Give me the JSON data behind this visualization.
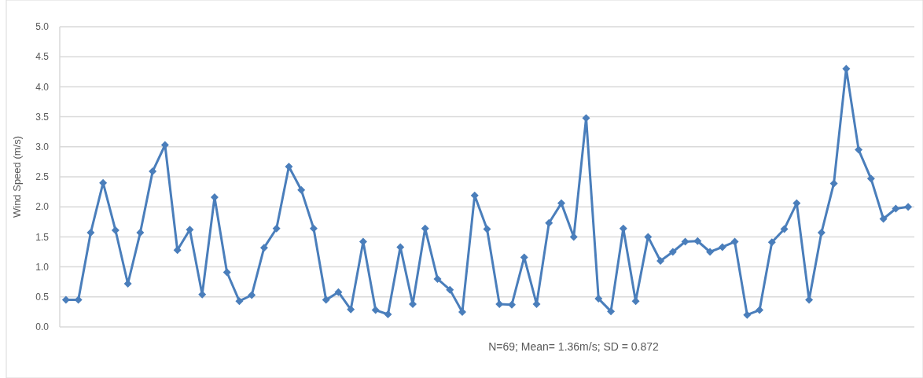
{
  "chart_data": {
    "type": "line",
    "ylabel": "Wind Speed (m/s)",
    "categories": [
      null,
      null,
      null,
      null,
      null,
      null,
      null,
      null,
      null,
      null,
      null,
      null,
      null,
      null,
      null,
      null,
      null,
      null,
      null,
      null,
      null,
      null,
      null,
      null,
      null,
      null,
      null,
      null,
      null,
      null,
      null,
      null,
      null,
      null,
      null,
      null,
      null,
      null,
      null,
      null,
      null,
      null,
      null,
      null,
      null,
      null,
      null,
      null,
      null,
      null,
      null,
      null,
      null,
      null,
      null,
      null,
      null,
      null,
      null,
      null,
      null,
      null,
      null,
      null,
      null,
      null,
      null,
      null,
      null
    ],
    "series": [
      {
        "color": "#4a7ebb",
        "values": [
          0.45,
          0.45,
          1.57,
          2.4,
          1.61,
          0.72,
          1.57,
          2.59,
          3.03,
          1.28,
          1.62,
          0.54,
          2.16,
          0.91,
          0.43,
          0.53,
          1.32,
          1.64,
          2.67,
          2.28,
          1.64,
          0.45,
          0.58,
          0.29,
          1.42,
          0.28,
          0.21,
          1.33,
          0.38,
          1.64,
          0.8,
          0.62,
          0.25,
          2.19,
          1.63,
          0.38,
          0.37,
          1.16,
          0.38,
          1.73,
          2.06,
          1.5,
          3.48,
          0.47,
          0.26,
          1.64,
          0.43,
          1.5,
          1.1,
          1.25,
          1.42,
          1.43,
          1.25,
          1.33,
          1.42,
          0.2,
          0.28,
          1.41,
          1.63,
          2.06,
          0.45,
          1.57,
          2.39,
          4.3,
          2.95,
          2.47,
          1.8,
          1.97,
          2.0
        ]
      }
    ],
    "ylim": [
      0,
      5
    ],
    "yticks": [
      {
        "value": 0,
        "label": "0.0"
      },
      {
        "value": 0.5,
        "label": "0.5"
      },
      {
        "value": 1,
        "label": "1.0"
      },
      {
        "value": 1.5,
        "label": "1.5"
      },
      {
        "value": 2,
        "label": "2.0"
      },
      {
        "value": 2.5,
        "label": "2.5"
      },
      {
        "value": 3,
        "label": "3.0"
      },
      {
        "value": 3.5,
        "label": "3.5"
      },
      {
        "value": 4,
        "label": "4.0"
      },
      {
        "value": 4.5,
        "label": "4.5"
      },
      {
        "value": 5,
        "label": "5.0"
      }
    ],
    "grid": "y",
    "marker": "diamond",
    "line_style": "solid",
    "annotations": [
      "N=69; Mean= 1.36m/s; SD = 0.872"
    ]
  }
}
